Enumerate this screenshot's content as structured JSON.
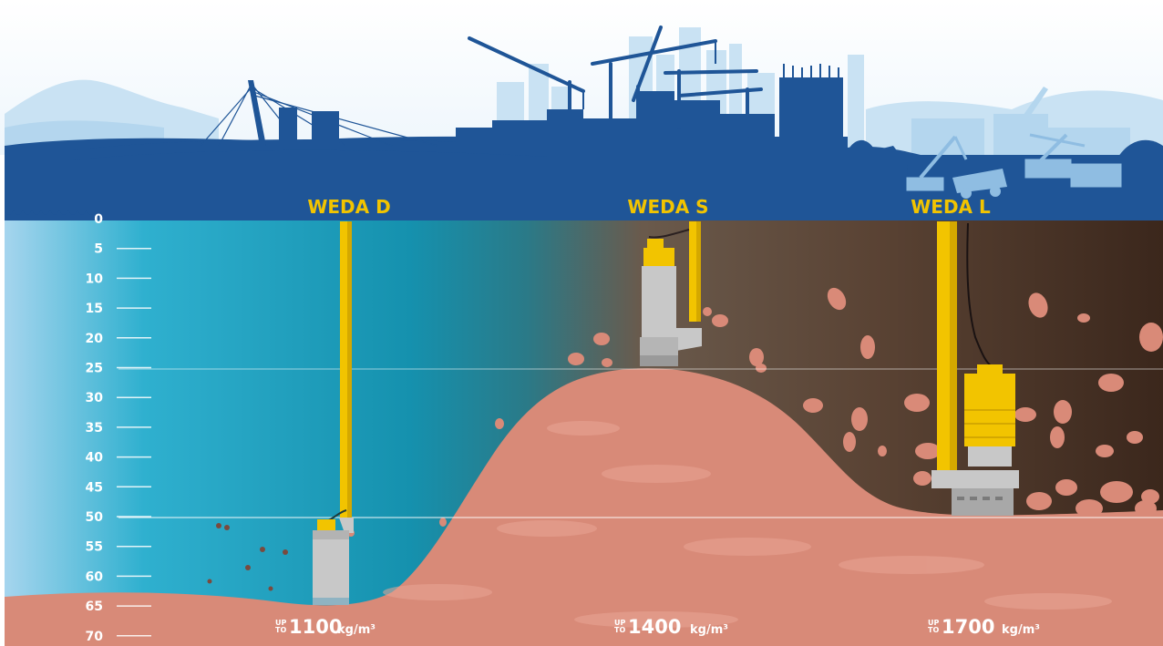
{
  "pumps": [
    {
      "label": "WEDA D",
      "density_prefix_1": "UP",
      "density_prefix_2": "TO",
      "density_value": "1100",
      "density_unit": "kg/m³",
      "operating_depth": 65
    },
    {
      "label": "WEDA S",
      "density_prefix_1": "UP",
      "density_prefix_2": "TO",
      "density_value": "1400",
      "density_unit": "kg/m³",
      "operating_depth": 25
    },
    {
      "label": "WEDA L",
      "density_prefix_1": "UP",
      "density_prefix_2": "TO",
      "density_value": "1700",
      "density_unit": "kg/m³",
      "operating_depth": 50
    }
  ],
  "depth_scale": {
    "ticks": [
      "0",
      "5",
      "10",
      "15",
      "20",
      "25",
      "30",
      "35",
      "40",
      "45",
      "50",
      "55",
      "60",
      "65",
      "70"
    ],
    "reference_lines": [
      25,
      50
    ]
  },
  "colors": {
    "sky_silhouette": "#1f5597",
    "water_light": "#9fd0ea",
    "water_teal": "#1a9cb8",
    "soil_dark": "#3e2a1f",
    "sediment": "#d98a78",
    "pump_yellow": "#f2c400",
    "pump_grey": "#c8c8c8",
    "label_yellow": "#f2c400"
  },
  "icons": [
    "skyline-silhouette",
    "cable-stayed-bridge-icon",
    "crane-icon",
    "excavator-icon",
    "haul-truck-icon",
    "submersible-pump-icon"
  ]
}
